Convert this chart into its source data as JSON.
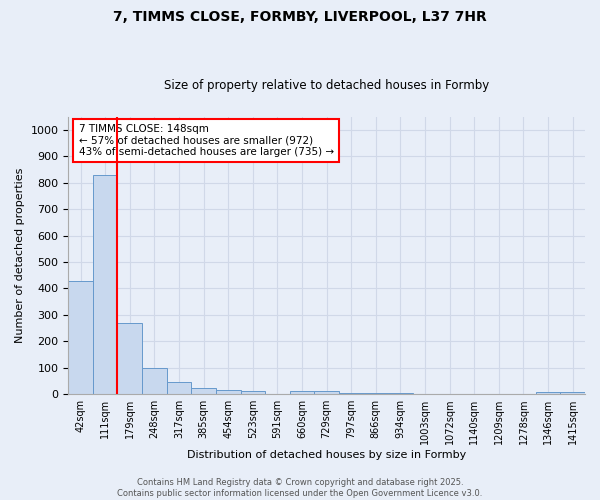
{
  "title": "7, TIMMS CLOSE, FORMBY, LIVERPOOL, L37 7HR",
  "subtitle": "Size of property relative to detached houses in Formby",
  "xlabel": "Distribution of detached houses by size in Formby",
  "ylabel": "Number of detached properties",
  "categories": [
    "42sqm",
    "111sqm",
    "179sqm",
    "248sqm",
    "317sqm",
    "385sqm",
    "454sqm",
    "523sqm",
    "591sqm",
    "660sqm",
    "729sqm",
    "797sqm",
    "866sqm",
    "934sqm",
    "1003sqm",
    "1072sqm",
    "1140sqm",
    "1209sqm",
    "1278sqm",
    "1346sqm",
    "1415sqm"
  ],
  "values": [
    430,
    830,
    270,
    97,
    45,
    22,
    17,
    11,
    2,
    10,
    10,
    5,
    5,
    3,
    2,
    2,
    2,
    1,
    1,
    7,
    7
  ],
  "bar_color": "#c8d8ee",
  "bar_edge_color": "#6699cc",
  "vline_color": "red",
  "vline_position": 1.5,
  "annotation_text": "7 TIMMS CLOSE: 148sqm\n← 57% of detached houses are smaller (972)\n43% of semi-detached houses are larger (735) →",
  "annotation_box_color": "white",
  "annotation_box_edge_color": "red",
  "ylim": [
    0,
    1050
  ],
  "yticks": [
    0,
    100,
    200,
    300,
    400,
    500,
    600,
    700,
    800,
    900,
    1000
  ],
  "footer": "Contains HM Land Registry data © Crown copyright and database right 2025.\nContains public sector information licensed under the Open Government Licence v3.0.",
  "bg_color": "#e8eef8",
  "grid_color": "#d0d8e8",
  "title_fontsize": 10,
  "subtitle_fontsize": 8.5
}
